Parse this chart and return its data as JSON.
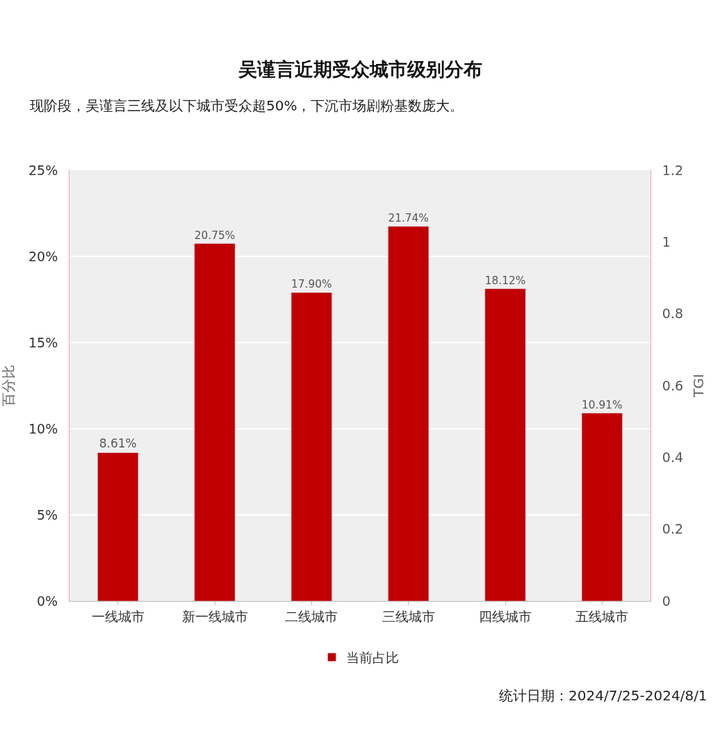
{
  "chart_data": {
    "type": "bar",
    "title": "吴谨言近期受众城市级别分布",
    "subtitle": "现阶段，吴谨言三线及以下城市受众超50%，下沉市场剧粉基数庞大。",
    "categories": [
      "一线城市",
      "新一线城市",
      "二线城市",
      "三线城市",
      "四线城市",
      "五线城市"
    ],
    "series": [
      {
        "name": "当前占比",
        "color": "#c00000",
        "values": [
          8.61,
          20.75,
          17.9,
          21.74,
          18.12,
          10.91
        ],
        "value_labels": [
          "8.61%",
          "20.75%",
          "17.90%",
          "21.74%",
          "18.12%",
          "10.91%"
        ]
      }
    ],
    "ylabel": "百分比",
    "y2label": "TGI",
    "ylim": [
      0,
      25
    ],
    "yticks": [
      {
        "value": 0,
        "label": "0%"
      },
      {
        "value": 5,
        "label": "5%"
      },
      {
        "value": 10,
        "label": "10%"
      },
      {
        "value": 15,
        "label": "15%"
      },
      {
        "value": 20,
        "label": "20%"
      },
      {
        "value": 25,
        "label": "25%"
      }
    ],
    "y2lim": [
      0,
      1.2
    ],
    "y2ticks": [
      0,
      0.2,
      0.4,
      0.6,
      0.8,
      1,
      1.2
    ],
    "grid": "y",
    "legend": "bottom",
    "annotations": [
      "统计日期：2024/7/25-2024/8/1"
    ]
  }
}
